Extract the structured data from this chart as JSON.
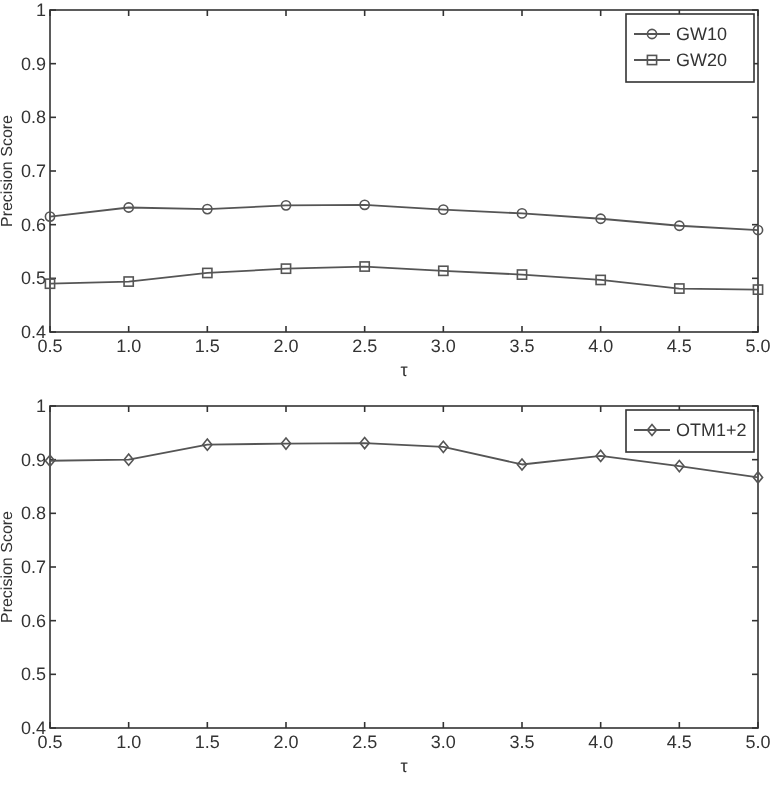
{
  "chart_data": [
    {
      "type": "line",
      "xlabel": "τ",
      "ylabel": "Precision Score",
      "x": [
        0.5,
        1.0,
        1.5,
        2.0,
        2.5,
        3.0,
        3.5,
        4.0,
        4.5,
        5.0
      ],
      "xlim": [
        0.5,
        5.0
      ],
      "ylim": [
        0.4,
        1
      ],
      "xticks": [
        {
          "value": 0.5,
          "label": "0.5"
        },
        {
          "value": 1,
          "label": "1.0"
        },
        {
          "value": 1.5,
          "label": "1.5"
        },
        {
          "value": 2,
          "label": "2.0"
        },
        {
          "value": 2.5,
          "label": "2.5"
        },
        {
          "value": 3,
          "label": "3.0"
        },
        {
          "value": 3.5,
          "label": "3.5"
        },
        {
          "value": 4,
          "label": "4.0"
        },
        {
          "value": 4.5,
          "label": "4.5"
        },
        {
          "value": 5,
          "label": "5.0"
        }
      ],
      "yticks": [
        0.4,
        0.5,
        0.6,
        0.7,
        0.8,
        0.9,
        1
      ],
      "grid": false,
      "legend": "top right",
      "series": [
        {
          "name": "GW10",
          "color": "#555555",
          "marker": "circle",
          "values": [
            0.615,
            0.632,
            0.629,
            0.636,
            0.637,
            0.628,
            0.621,
            0.611,
            0.598,
            0.59
          ]
        },
        {
          "name": "GW20",
          "color": "#555555",
          "marker": "square",
          "values": [
            0.49,
            0.494,
            0.51,
            0.518,
            0.522,
            0.514,
            0.507,
            0.497,
            0.481,
            0.479
          ]
        }
      ]
    },
    {
      "type": "line",
      "xlabel": "τ",
      "ylabel": "Precision Score",
      "x": [
        0.5,
        1.0,
        1.5,
        2.0,
        2.5,
        3.0,
        3.5,
        4.0,
        4.5,
        5.0
      ],
      "xlim": [
        0.5,
        5.0
      ],
      "ylim": [
        0.4,
        1
      ],
      "xticks": [
        {
          "value": 0.5,
          "label": "0.5"
        },
        {
          "value": 1,
          "label": "1.0"
        },
        {
          "value": 1.5,
          "label": "1.5"
        },
        {
          "value": 2,
          "label": "2.0"
        },
        {
          "value": 2.5,
          "label": "2.5"
        },
        {
          "value": 3,
          "label": "3.0"
        },
        {
          "value": 3.5,
          "label": "3.5"
        },
        {
          "value": 4,
          "label": "4.0"
        },
        {
          "value": 4.5,
          "label": "4.5"
        },
        {
          "value": 5,
          "label": "5.0"
        }
      ],
      "yticks": [
        0.4,
        0.5,
        0.6,
        0.7,
        0.8,
        0.9,
        1
      ],
      "grid": false,
      "legend": "top right",
      "series": [
        {
          "name": "OTM1+2",
          "color": "#555555",
          "marker": "diamond",
          "values": [
            0.898,
            0.9,
            0.928,
            0.93,
            0.931,
            0.924,
            0.891,
            0.907,
            0.888,
            0.867
          ]
        }
      ]
    }
  ]
}
